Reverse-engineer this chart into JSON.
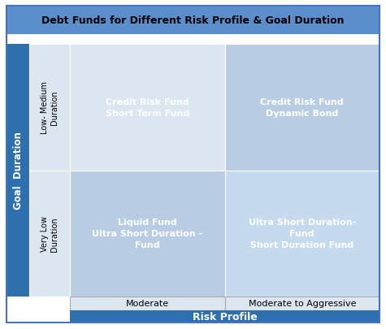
{
  "title": "Debt Funds for Different Risk Profile & Goal Duration",
  "title_bg": "#5b8fcb",
  "title_color": "#000000",
  "goal_duration_label": "Goal  Duration",
  "risk_profile_label": "Risk Profile",
  "row_labels": [
    "Low- Medium\nDuration",
    "Very Low\nDuration"
  ],
  "col_labels": [
    "Moderate",
    "Moderate to Aggressive"
  ],
  "cell_texts": [
    [
      "Credit Risk Fund\nShort Term Fund",
      "Credit Risk Fund\nDynamic Bond"
    ],
    [
      "Liquid Fund\nUltra Short Duration -\nFund",
      "Ultra Short Duration-\nFund\nShort Duration Fund"
    ]
  ],
  "top_left_cell_color": "#dce6f1",
  "top_right_cell_color": "#b8cce4",
  "bottom_left_cell_color": "#b8cce4",
  "bottom_right_cell_color": "#c5d9ef",
  "row_label_top_color": "#dce6f1",
  "row_label_bottom_color": "#dce6f1",
  "sidebar_color": "#2e6fad",
  "bottom_bar_color": "#2e6fad",
  "text_color_white": "#ffffff",
  "text_color_dark": "#000000",
  "cell_text_color": "#ffffff",
  "row_label_color": "#000000",
  "col_label_color": "#000000",
  "outer_border_color": "#4472c4",
  "figure_bg": "#ffffff",
  "col_label_bg": "#dce6f1"
}
